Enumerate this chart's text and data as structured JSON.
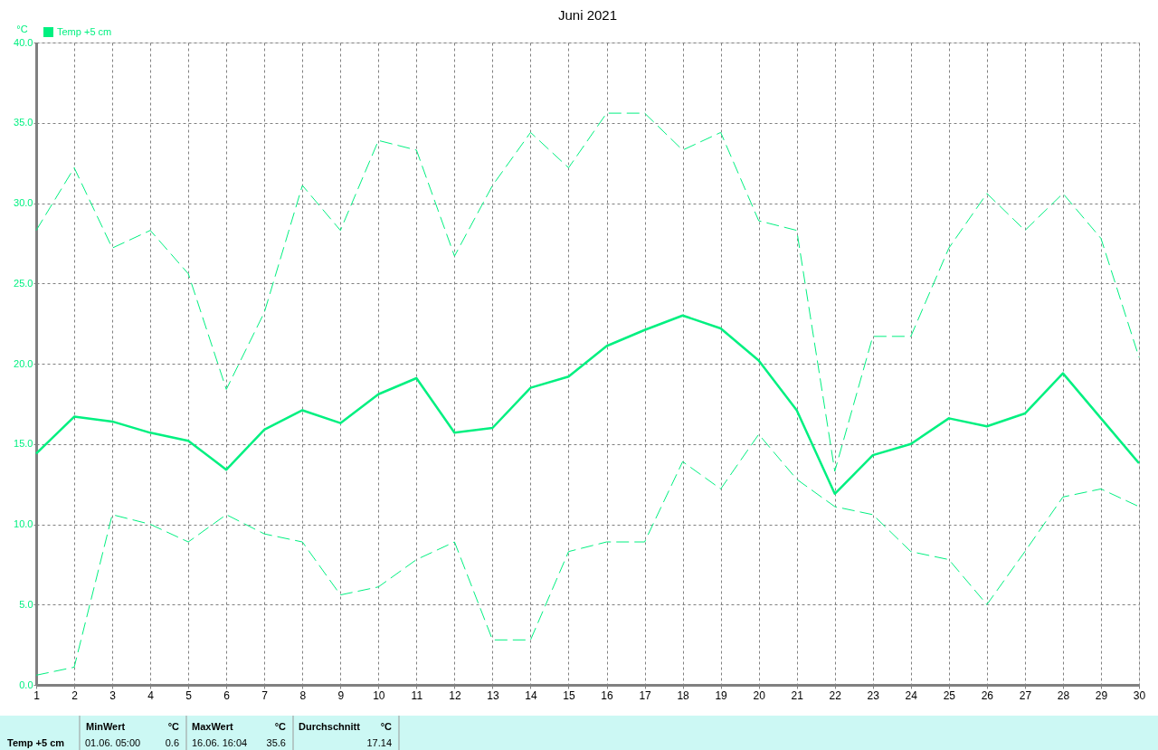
{
  "chart_data": {
    "type": "line",
    "title": "Juni 2021",
    "ylabel": "°C",
    "x": [
      1,
      2,
      3,
      4,
      5,
      6,
      7,
      8,
      9,
      10,
      11,
      12,
      13,
      14,
      15,
      16,
      17,
      18,
      19,
      20,
      21,
      22,
      23,
      24,
      25,
      26,
      27,
      28,
      29,
      30
    ],
    "series": [
      {
        "name": "Temp +5 cm",
        "color": "#00f080",
        "line_style": "solid",
        "values": [
          14.4,
          16.7,
          16.4,
          15.7,
          15.2,
          13.4,
          15.9,
          17.1,
          16.3,
          18.1,
          19.1,
          15.7,
          16.0,
          18.5,
          19.2,
          21.1,
          22.1,
          23.0,
          22.2,
          20.2,
          17.1,
          11.9,
          14.3,
          15.0,
          16.6,
          16.1,
          16.9,
          19.4,
          16.6,
          13.8
        ]
      },
      {
        "color": "#00f080",
        "line_style": "dashed",
        "values": [
          28.3,
          32.2,
          27.2,
          28.3,
          25.6,
          18.4,
          23.2,
          31.1,
          28.3,
          33.9,
          33.3,
          26.7,
          31.1,
          34.4,
          32.2,
          35.6,
          35.6,
          33.3,
          34.4,
          28.9,
          28.3,
          13.3,
          21.7,
          21.7,
          27.2,
          30.6,
          28.3,
          30.6,
          27.8,
          20.4
        ]
      },
      {
        "color": "#00f080",
        "line_style": "dashed",
        "values": [
          0.6,
          1.1,
          10.6,
          10.0,
          8.9,
          10.6,
          9.4,
          8.9,
          5.6,
          6.1,
          7.8,
          8.9,
          2.8,
          2.8,
          8.3,
          8.9,
          8.9,
          13.9,
          12.2,
          15.6,
          12.8,
          11.1,
          10.6,
          8.3,
          7.8,
          5.0,
          8.3,
          11.7,
          12.2,
          11.1
        ]
      }
    ],
    "xlim": [
      1,
      30
    ],
    "xticks": [
      1,
      2,
      3,
      4,
      5,
      6,
      7,
      8,
      9,
      10,
      11,
      12,
      13,
      14,
      15,
      16,
      17,
      18,
      19,
      20,
      21,
      22,
      23,
      24,
      25,
      26,
      27,
      28,
      29,
      30
    ],
    "ylim": [
      0,
      40
    ],
    "yticks": [
      {
        "value": 0,
        "label": "0.0"
      },
      {
        "value": 5,
        "label": "5.0"
      },
      {
        "value": 10,
        "label": "10.0"
      },
      {
        "value": 15,
        "label": "15.0"
      },
      {
        "value": 20,
        "label": "20.0"
      },
      {
        "value": 25,
        "label": "25.0"
      },
      {
        "value": 30,
        "label": "30.0"
      },
      {
        "value": 35,
        "label": "35.0"
      },
      {
        "value": 40,
        "label": "40.0"
      }
    ],
    "grid": true,
    "legend": "top left",
    "marker": "none",
    "annotations": [
      "Temp +5 cm",
      "MinWert",
      "°C",
      "01.06.  05:00",
      "0.6",
      "MaxWert",
      "°C",
      "16.06.  16:04",
      "35.6",
      "Durchschnitt",
      "°C",
      "17.14"
    ]
  }
}
